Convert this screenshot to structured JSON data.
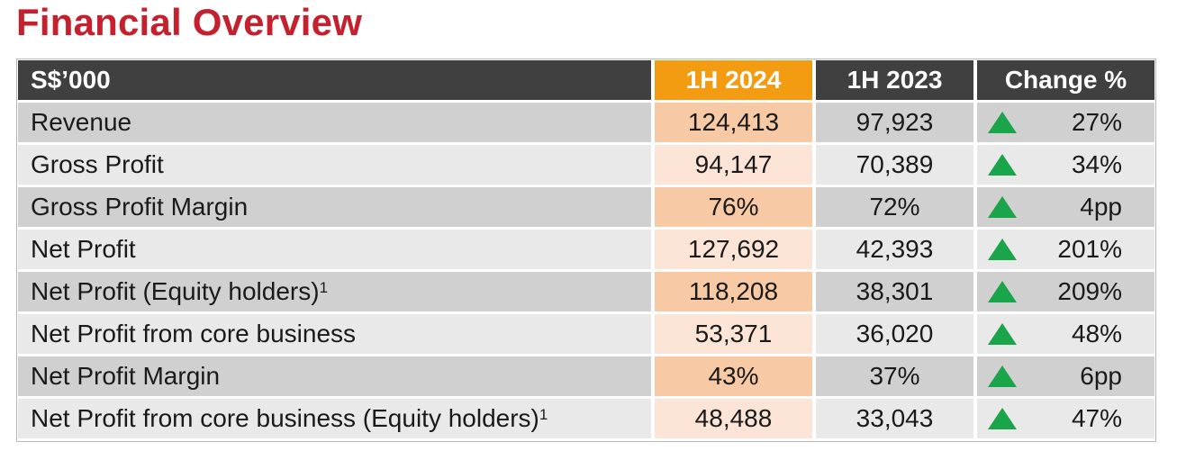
{
  "title": "Financial Overview",
  "header": {
    "label": "S$’000",
    "col_current": "1H 2024",
    "col_prior": "1H 2023",
    "col_change": "Change %"
  },
  "rows": [
    {
      "label": "Revenue",
      "note": "",
      "current": "124,413",
      "prior": "97,923",
      "change": "27%",
      "direction": "up"
    },
    {
      "label": "Gross Profit",
      "note": "",
      "current": "94,147",
      "prior": "70,389",
      "change": "34%",
      "direction": "up"
    },
    {
      "label": "Gross Profit Margin",
      "note": "",
      "current": "76%",
      "prior": "72%",
      "change": "4pp",
      "direction": "up"
    },
    {
      "label": "Net Profit",
      "note": "",
      "current": "127,692",
      "prior": "42,393",
      "change": "201%",
      "direction": "up"
    },
    {
      "label": "Net Profit (Equity holders)",
      "note": "1",
      "current": "118,208",
      "prior": "38,301",
      "change": "209%",
      "direction": "up"
    },
    {
      "label": "Net Profit from core business",
      "note": "",
      "current": "53,371",
      "prior": "36,020",
      "change": "48%",
      "direction": "up"
    },
    {
      "label": "Net Profit Margin",
      "note": "",
      "current": "43%",
      "prior": "37%",
      "change": "6pp",
      "direction": "up"
    },
    {
      "label": "Net Profit from core business (Equity holders)",
      "note": "1",
      "current": "48,488",
      "prior": "33,043",
      "change": "47%",
      "direction": "up"
    }
  ],
  "colors": {
    "title": "#c5202e",
    "header_bg": "#404040",
    "header_current_bg": "#f39c12",
    "row_dark_bg": "#d0d0d0",
    "row_light_bg": "#e9e9e9",
    "current_dark_bg": "#f7c9a4",
    "current_light_bg": "#fce4d6",
    "up_arrow": "#1aa54a"
  },
  "icons": {
    "up": "triangle-up-icon"
  }
}
